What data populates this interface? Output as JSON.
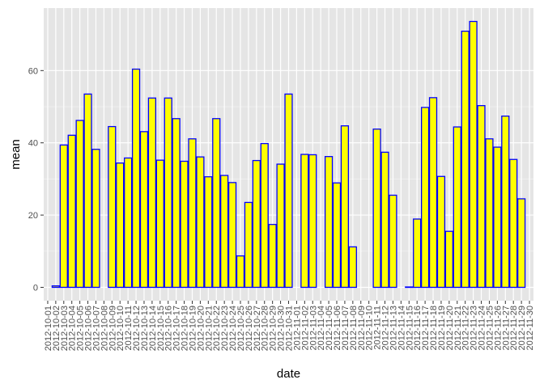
{
  "chart_data": {
    "type": "bar",
    "title": "",
    "xlabel": "date",
    "ylabel": "mean",
    "ylim": [
      -3.7,
      77.3
    ],
    "yticks": [
      0,
      20,
      40,
      60
    ],
    "grid": true,
    "legend": "none",
    "colors": {
      "panel_bg": "#e5e5e5",
      "grid_major": "#ffffff",
      "grid_minor": "#f2f2f2",
      "bar_fill": "#ffff00",
      "bar_stroke": "#0000ff",
      "tick_text": "#4d4d4d"
    },
    "categories": [
      "2012-10-01",
      "2012-10-02",
      "2012-10-03",
      "2012-10-04",
      "2012-10-05",
      "2012-10-06",
      "2012-10-07",
      "2012-10-08",
      "2012-10-09",
      "2012-10-10",
      "2012-10-11",
      "2012-10-12",
      "2012-10-13",
      "2012-10-14",
      "2012-10-15",
      "2012-10-16",
      "2012-10-17",
      "2012-10-18",
      "2012-10-19",
      "2012-10-20",
      "2012-10-21",
      "2012-10-22",
      "2012-10-23",
      "2012-10-24",
      "2012-10-25",
      "2012-10-26",
      "2012-10-27",
      "2012-10-28",
      "2012-10-29",
      "2012-10-30",
      "2012-10-31",
      "2012-11-01",
      "2012-11-02",
      "2012-11-03",
      "2012-11-04",
      "2012-11-05",
      "2012-11-06",
      "2012-11-07",
      "2012-11-08",
      "2012-11-09",
      "2012-11-10",
      "2012-11-11",
      "2012-11-12",
      "2012-11-13",
      "2012-11-14",
      "2012-11-15",
      "2012-11-16",
      "2012-11-17",
      "2012-11-18",
      "2012-11-19",
      "2012-11-20",
      "2012-11-21",
      "2012-11-22",
      "2012-11-23",
      "2012-11-24",
      "2012-11-25",
      "2012-11-26",
      "2012-11-27",
      "2012-11-28",
      "2012-11-29",
      "2012-11-30"
    ],
    "values": [
      null,
      0.4,
      39.4,
      42.1,
      46.2,
      53.5,
      38.2,
      null,
      44.5,
      34.4,
      35.8,
      60.4,
      43.1,
      52.4,
      35.2,
      52.4,
      46.7,
      34.9,
      41.1,
      36.1,
      30.6,
      46.7,
      30.97,
      29.0,
      8.7,
      23.5,
      35.1,
      39.8,
      17.4,
      34.1,
      53.5,
      null,
      36.8,
      36.7,
      null,
      36.2,
      28.9,
      44.7,
      11.2,
      null,
      null,
      43.8,
      37.4,
      25.5,
      null,
      0.1,
      18.9,
      49.8,
      52.5,
      30.7,
      15.5,
      44.4,
      70.9,
      73.6,
      50.3,
      41.1,
      38.8,
      47.4,
      35.4,
      24.5,
      null
    ]
  }
}
